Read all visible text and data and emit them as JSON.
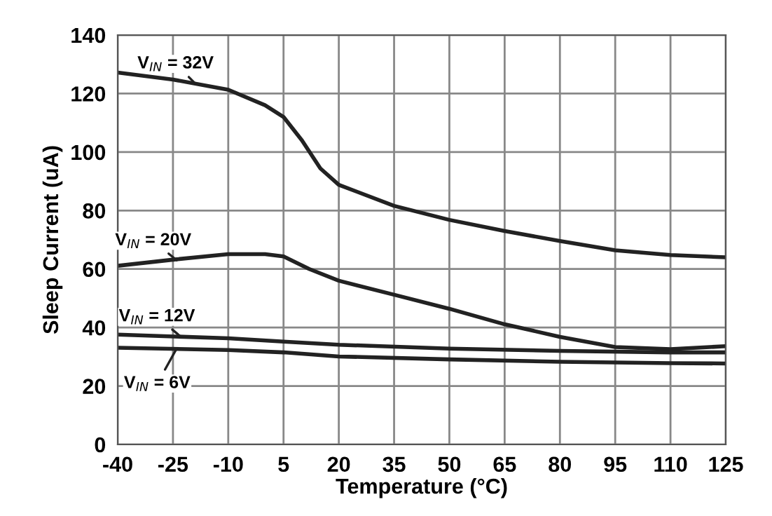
{
  "chart_data": {
    "type": "line",
    "xlabel": "Temperature (°C)",
    "ylabel": "Sleep Current (uA)",
    "xlim": [
      -40,
      125
    ],
    "xticks": [
      -40,
      -25,
      -10,
      5,
      20,
      35,
      50,
      65,
      80,
      95,
      110,
      125
    ],
    "ylim": [
      0,
      140
    ],
    "yticks": [
      0,
      20,
      40,
      60,
      80,
      100,
      120,
      140
    ],
    "grid": true,
    "marker": "none",
    "line_style": "solid",
    "series": [
      {
        "color": "#222222",
        "x": [
          -40,
          -25,
          -10,
          0,
          5,
          10,
          15,
          20,
          35,
          50,
          65,
          80,
          95,
          110,
          125
        ],
        "values": [
          127.2,
          124.8,
          121.3,
          116,
          112,
          104,
          94.4,
          88.8,
          81.6,
          76.8,
          73,
          69.6,
          66.4,
          64.8,
          64
        ]
      },
      {
        "color": "#222222",
        "x": [
          -40,
          -25,
          -10,
          0,
          5,
          12,
          20,
          35,
          50,
          65,
          80,
          95,
          110,
          125
        ],
        "values": [
          61.1,
          63.2,
          65.1,
          65.1,
          64.3,
          60,
          56,
          51.2,
          46.4,
          41.1,
          36.8,
          33.3,
          32.6,
          33.6
        ]
      },
      {
        "color": "#222222",
        "x": [
          -40,
          -10,
          5,
          20,
          50,
          80,
          110,
          125
        ],
        "values": [
          37.6,
          36.3,
          35.2,
          34.1,
          32.8,
          32,
          31.5,
          31.5
        ]
      },
      {
        "color": "#222222",
        "x": [
          -40,
          -10,
          5,
          20,
          50,
          80,
          110,
          125
        ],
        "values": [
          33.1,
          32.3,
          31.5,
          30.1,
          29.1,
          28.3,
          27.8,
          27.7
        ]
      }
    ],
    "annotations": [
      {
        "text": "V$_{IN}$ = 32V",
        "x": -19,
        "y": 123.5
      },
      {
        "text": "V$_{IN}$ = 20V",
        "x": -24,
        "y": 63
      },
      {
        "text": "V$_{IN}$ = 12V",
        "x": -23,
        "y": 37
      },
      {
        "text": "V$_{IN}$ = 6V",
        "x": -24,
        "y": 32.8
      }
    ]
  }
}
